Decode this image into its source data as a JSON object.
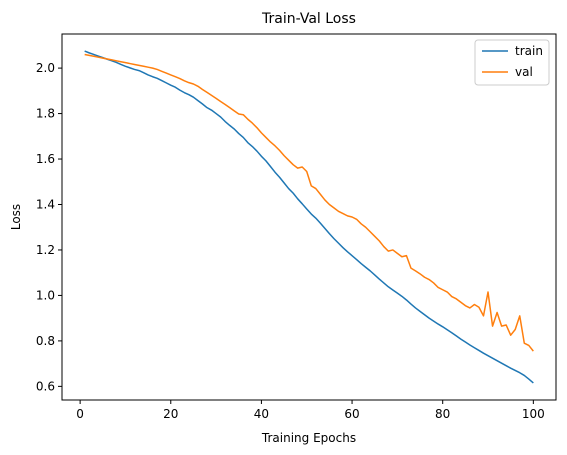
{
  "chart_data": {
    "type": "line",
    "title": "Train-Val Loss",
    "xlabel": "Training Epochs",
    "ylabel": "Loss",
    "xlim": [
      -4,
      105
    ],
    "ylim": [
      0.54,
      2.15
    ],
    "xticks": [
      0,
      20,
      40,
      60,
      80,
      100
    ],
    "yticks": [
      0.6,
      0.8,
      1.0,
      1.2,
      1.4,
      1.6,
      1.8,
      2.0
    ],
    "grid": false,
    "legend_position": "top-right",
    "x": [
      1,
      2,
      3,
      4,
      5,
      6,
      7,
      8,
      9,
      10,
      11,
      12,
      13,
      14,
      15,
      16,
      17,
      18,
      19,
      20,
      21,
      22,
      23,
      24,
      25,
      26,
      27,
      28,
      29,
      30,
      31,
      32,
      33,
      34,
      35,
      36,
      37,
      38,
      39,
      40,
      41,
      42,
      43,
      44,
      45,
      46,
      47,
      48,
      49,
      50,
      51,
      52,
      53,
      54,
      55,
      56,
      57,
      58,
      59,
      60,
      61,
      62,
      63,
      64,
      65,
      66,
      67,
      68,
      69,
      70,
      71,
      72,
      73,
      74,
      75,
      76,
      77,
      78,
      79,
      80,
      81,
      82,
      83,
      84,
      85,
      86,
      87,
      88,
      89,
      90,
      91,
      92,
      93,
      94,
      95,
      96,
      97,
      98,
      99,
      100
    ],
    "series": [
      {
        "name": "train",
        "color": "#1f77b4",
        "values": [
          2.075,
          2.067,
          2.06,
          2.053,
          2.046,
          2.039,
          2.032,
          2.025,
          2.016,
          2.008,
          2.001,
          1.994,
          1.989,
          1.98,
          1.97,
          1.962,
          1.955,
          1.945,
          1.935,
          1.925,
          1.916,
          1.903,
          1.892,
          1.883,
          1.872,
          1.857,
          1.842,
          1.826,
          1.815,
          1.8,
          1.785,
          1.765,
          1.748,
          1.732,
          1.712,
          1.695,
          1.672,
          1.655,
          1.635,
          1.612,
          1.592,
          1.567,
          1.542,
          1.52,
          1.495,
          1.47,
          1.45,
          1.425,
          1.403,
          1.38,
          1.358,
          1.34,
          1.318,
          1.295,
          1.272,
          1.25,
          1.23,
          1.21,
          1.192,
          1.175,
          1.158,
          1.14,
          1.124,
          1.108,
          1.09,
          1.072,
          1.055,
          1.038,
          1.024,
          1.01,
          0.996,
          0.98,
          0.962,
          0.945,
          0.93,
          0.915,
          0.9,
          0.887,
          0.874,
          0.862,
          0.849,
          0.836,
          0.822,
          0.808,
          0.795,
          0.782,
          0.77,
          0.758,
          0.746,
          0.735,
          0.724,
          0.713,
          0.702,
          0.691,
          0.68,
          0.67,
          0.66,
          0.648,
          0.632,
          0.615
        ]
      },
      {
        "name": "val",
        "color": "#ff7f0e",
        "values": [
          2.06,
          2.056,
          2.052,
          2.048,
          2.044,
          2.04,
          2.036,
          2.032,
          2.028,
          2.024,
          2.02,
          2.016,
          2.012,
          2.008,
          2.004,
          2.0,
          1.994,
          1.986,
          1.978,
          1.97,
          1.962,
          1.954,
          1.944,
          1.936,
          1.93,
          1.92,
          1.906,
          1.893,
          1.88,
          1.867,
          1.853,
          1.84,
          1.826,
          1.812,
          1.798,
          1.795,
          1.775,
          1.758,
          1.738,
          1.715,
          1.695,
          1.675,
          1.658,
          1.638,
          1.615,
          1.595,
          1.575,
          1.56,
          1.565,
          1.545,
          1.482,
          1.47,
          1.445,
          1.42,
          1.4,
          1.385,
          1.37,
          1.36,
          1.35,
          1.345,
          1.335,
          1.315,
          1.3,
          1.28,
          1.26,
          1.24,
          1.215,
          1.195,
          1.2,
          1.185,
          1.17,
          1.175,
          1.12,
          1.108,
          1.095,
          1.08,
          1.07,
          1.055,
          1.035,
          1.025,
          1.015,
          0.995,
          0.985,
          0.97,
          0.955,
          0.945,
          0.96,
          0.948,
          0.91,
          1.015,
          0.865,
          0.925,
          0.865,
          0.87,
          0.825,
          0.85,
          0.91,
          0.79,
          0.78,
          0.755
        ]
      }
    ]
  }
}
